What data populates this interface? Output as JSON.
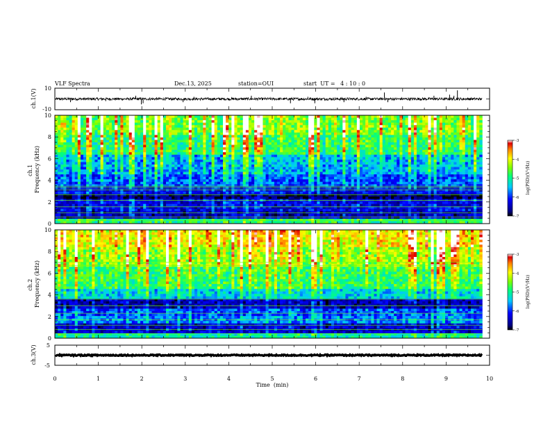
{
  "header": {
    "title": "VLF Spectra",
    "date": "Dec.13, 2025",
    "station": "station=OUI",
    "start_ut": "start  UT =   4 : 10 : 0"
  },
  "chart_data": [
    {
      "type": "line",
      "name": "ch1-waveform",
      "ylabel": "ch.1(V)",
      "ylim": [
        -10,
        10
      ],
      "y_ticks": [
        "10",
        "-10"
      ],
      "baseline": 0,
      "noise_amplitude": 1.2,
      "spikes": [
        {
          "x": 0.36,
          "y": -3
        },
        {
          "x": 1.17,
          "y": -2
        },
        {
          "x": 1.86,
          "y": 3
        },
        {
          "x": 1.99,
          "y": -5
        },
        {
          "x": 2.03,
          "y": -4
        },
        {
          "x": 2.95,
          "y": -3
        },
        {
          "x": 3.2,
          "y": 2
        },
        {
          "x": 4.52,
          "y": 3
        },
        {
          "x": 5.42,
          "y": -4
        },
        {
          "x": 5.82,
          "y": 2
        },
        {
          "x": 5.98,
          "y": -4
        },
        {
          "x": 6.65,
          "y": -3
        },
        {
          "x": 7.16,
          "y": 2
        },
        {
          "x": 7.58,
          "y": 6
        },
        {
          "x": 7.66,
          "y": -3
        },
        {
          "x": 8.72,
          "y": 3
        },
        {
          "x": 9.08,
          "y": 4
        },
        {
          "x": 9.18,
          "y": 3
        },
        {
          "x": 9.26,
          "y": 8
        }
      ]
    },
    {
      "type": "heatmap",
      "name": "ch1-spectrogram",
      "ylabel": "ch.1\nFrequency  (kHz)",
      "ylim": [
        0,
        10
      ],
      "y_ticks": [
        "0",
        "2",
        "4",
        "6",
        "8",
        "10"
      ],
      "colorbar": {
        "label": "log(PSD)(V²/Hz)",
        "range": [
          -7,
          -3
        ],
        "ticks": [
          "-3",
          "-4",
          "-5",
          "-6",
          "-7"
        ]
      },
      "bands_khz": [
        {
          "from": 0,
          "to": 0.5,
          "log_psd": -5.0
        },
        {
          "from": 0.5,
          "to": 1.2,
          "log_psd": -6.6
        },
        {
          "from": 1.2,
          "to": 2.2,
          "log_psd": -6.4
        },
        {
          "from": 2.2,
          "to": 2.8,
          "log_psd": -6.9
        },
        {
          "from": 2.8,
          "to": 3.4,
          "log_psd": -6.3
        },
        {
          "from": 3.4,
          "to": 4.6,
          "log_psd": -6.0
        },
        {
          "from": 4.6,
          "to": 6.4,
          "log_psd": -5.7
        },
        {
          "from": 6.4,
          "to": 8.2,
          "log_psd": -5.1
        },
        {
          "from": 8.2,
          "to": 10,
          "log_psd": -4.8
        }
      ],
      "line_freqs_khz": [
        0.3,
        0.6,
        1.0,
        1.55,
        2.15,
        2.65,
        3.1,
        3.3,
        3.45
      ]
    },
    {
      "type": "heatmap",
      "name": "ch2-spectrogram",
      "ylabel": "ch.2\nFrequency  (kHz)",
      "ylim": [
        0,
        10
      ],
      "y_ticks": [
        "0",
        "2",
        "4",
        "6",
        "8",
        "10"
      ],
      "colorbar": {
        "label": "log(PSD)(V²/Hz)",
        "range": [
          -7,
          -3
        ],
        "ticks": [
          "-3",
          "-4",
          "-5",
          "-6",
          "-7"
        ]
      },
      "bands_khz": [
        {
          "from": 0,
          "to": 0.5,
          "log_psd": -5.2
        },
        {
          "from": 0.5,
          "to": 1.4,
          "log_psd": -6.5
        },
        {
          "from": 1.4,
          "to": 2.0,
          "log_psd": -5.8
        },
        {
          "from": 2.0,
          "to": 2.8,
          "log_psd": -6.0
        },
        {
          "from": 2.8,
          "to": 3.6,
          "log_psd": -6.6
        },
        {
          "from": 3.6,
          "to": 4.6,
          "log_psd": -5.5
        },
        {
          "from": 4.6,
          "to": 6.6,
          "log_psd": -5.0
        },
        {
          "from": 6.6,
          "to": 8.5,
          "log_psd": -4.6
        },
        {
          "from": 8.5,
          "to": 10,
          "log_psd": -4.3
        }
      ],
      "line_freqs_khz": [
        0.4,
        0.8,
        1.2,
        1.7,
        2.3,
        3.0,
        3.6,
        6.7,
        7.0
      ]
    },
    {
      "type": "line",
      "name": "ch3-waveform",
      "ylabel": "ch.3(V)",
      "ylim": [
        -5,
        5
      ],
      "y_ticks": [
        "5",
        "-5"
      ],
      "baseline": 0,
      "noise_amplitude": 0.3
    }
  ],
  "x_axis": {
    "label": "Time  (min)",
    "xlim": [
      0,
      10
    ],
    "data_end": 9.83,
    "ticks": [
      "0",
      "1",
      "2",
      "3",
      "4",
      "5",
      "6",
      "7",
      "8",
      "9",
      "10"
    ]
  }
}
